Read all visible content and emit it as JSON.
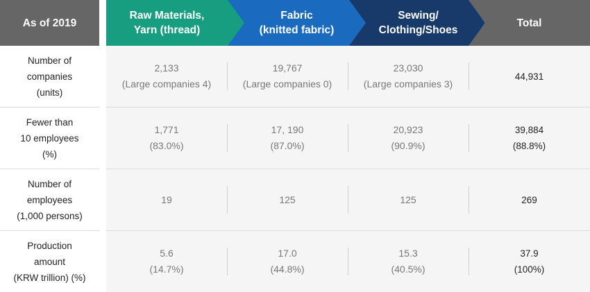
{
  "header": {
    "as_of": "As of 2019",
    "col1": "Raw Materials,\nYarn (thread)",
    "col2": "Fabric\n(knitted fabric)",
    "col3": "Sewing/\nClothing/Shoes",
    "total": "Total",
    "colors": {
      "as_of_bg": "#666666",
      "col1_bg": "#179e80",
      "col2_bg": "#1a6bbf",
      "col3_bg": "#173a6b",
      "total_bg": "#666666"
    }
  },
  "rows": [
    {
      "label": "Number of\ncompanies\n(units)",
      "cells": [
        "2,133\n(Large companies 4)",
        "19,767\n(Large companies 0)",
        "23,030\n(Large companies 3)"
      ],
      "total": "44,931"
    },
    {
      "label": "Fewer than\n10 employees\n(%)",
      "cells": [
        "1,771\n(83.0%)",
        "17, 190\n(87.0%)",
        "20,923\n(90.9%)"
      ],
      "total": "39,884\n(88.8%)"
    },
    {
      "label": "Number of\nemployees\n(1,000 persons)",
      "cells": [
        "19",
        "125",
        "125"
      ],
      "total": "269"
    },
    {
      "label": "Production\namount\n(KRW trillion) (%)",
      "cells": [
        "5.6\n(14.7%)",
        "17.0\n(44.8%)",
        "15.3\n(40.5%)"
      ],
      "total": "37.9\n(100%)"
    }
  ]
}
